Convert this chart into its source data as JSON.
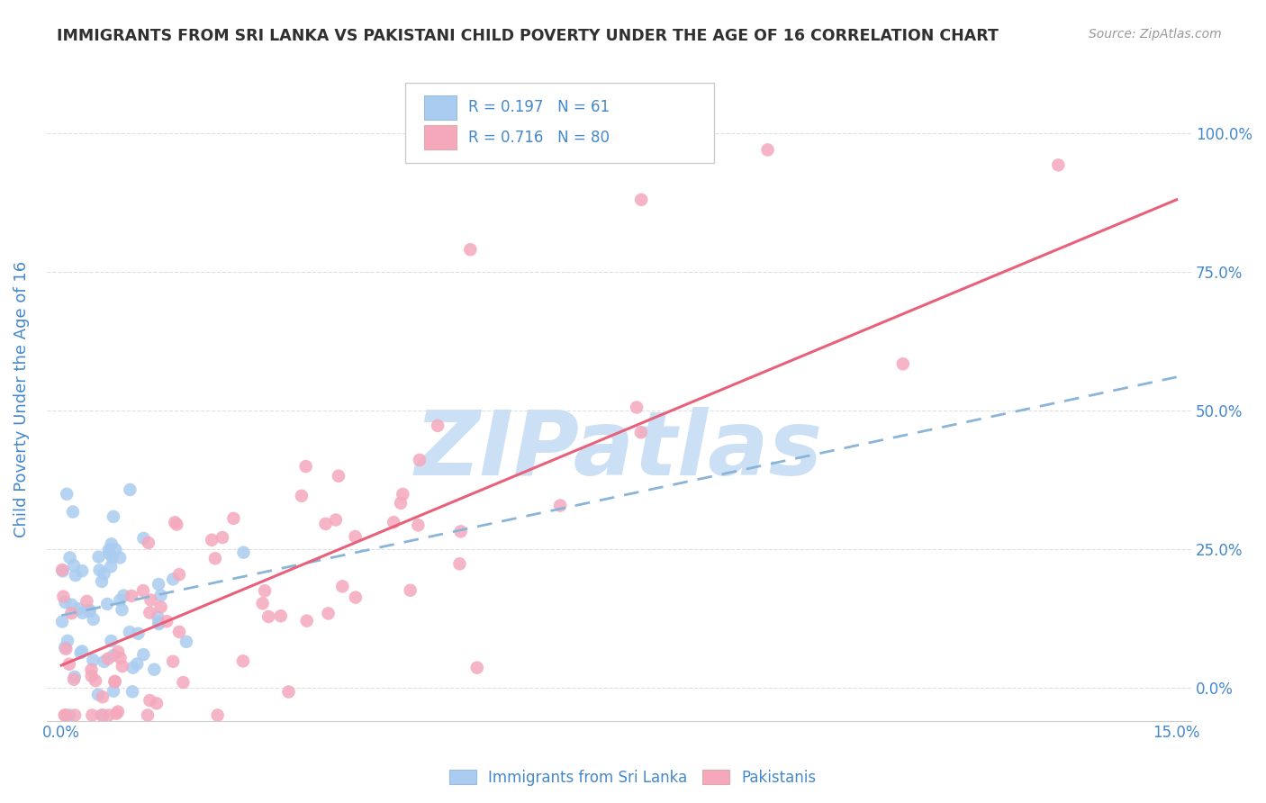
{
  "title": "IMMIGRANTS FROM SRI LANKA VS PAKISTANI CHILD POVERTY UNDER THE AGE OF 16 CORRELATION CHART",
  "source": "Source: ZipAtlas.com",
  "ylabel": "Child Poverty Under the Age of 16",
  "xlim": [
    -0.002,
    0.152
  ],
  "ylim": [
    -0.06,
    1.1
  ],
  "xticks": [
    0.0,
    0.03,
    0.06,
    0.09,
    0.12,
    0.15
  ],
  "xtick_labels": [
    "0.0%",
    "",
    "",
    "",
    "",
    "15.0%"
  ],
  "yticks_right": [
    0.0,
    0.25,
    0.5,
    0.75,
    1.0
  ],
  "ytick_labels_right": [
    "0.0%",
    "25.0%",
    "50.0%",
    "75.0%",
    "100.0%"
  ],
  "sri_lanka_color": "#aaccf0",
  "pakistani_color": "#f5a8bc",
  "sri_lanka_line_color": "#8ab4d8",
  "pakistani_line_color": "#e8607a",
  "R_sri_lanka": 0.197,
  "N_sri_lanka": 61,
  "R_pakistani": 0.716,
  "N_pakistani": 80,
  "watermark": "ZIPatlas",
  "watermark_color": "#cce0f5",
  "background_color": "#ffffff",
  "grid_color": "#d8d8d8",
  "title_color": "#303030",
  "axis_label_color": "#4488cc",
  "tick_color": "#4488cc",
  "legend_label1": "Immigrants from Sri Lanka",
  "legend_label2": "Pakistanis",
  "sri_lanka_trend_x0": 0.0,
  "sri_lanka_trend_y0": 0.13,
  "sri_lanka_trend_x1": 0.15,
  "sri_lanka_trend_y1": 0.56,
  "pakistani_trend_x0": 0.0,
  "pakistani_trend_y0": 0.04,
  "pakistani_trend_x1": 0.15,
  "pakistani_trend_y1": 0.88
}
